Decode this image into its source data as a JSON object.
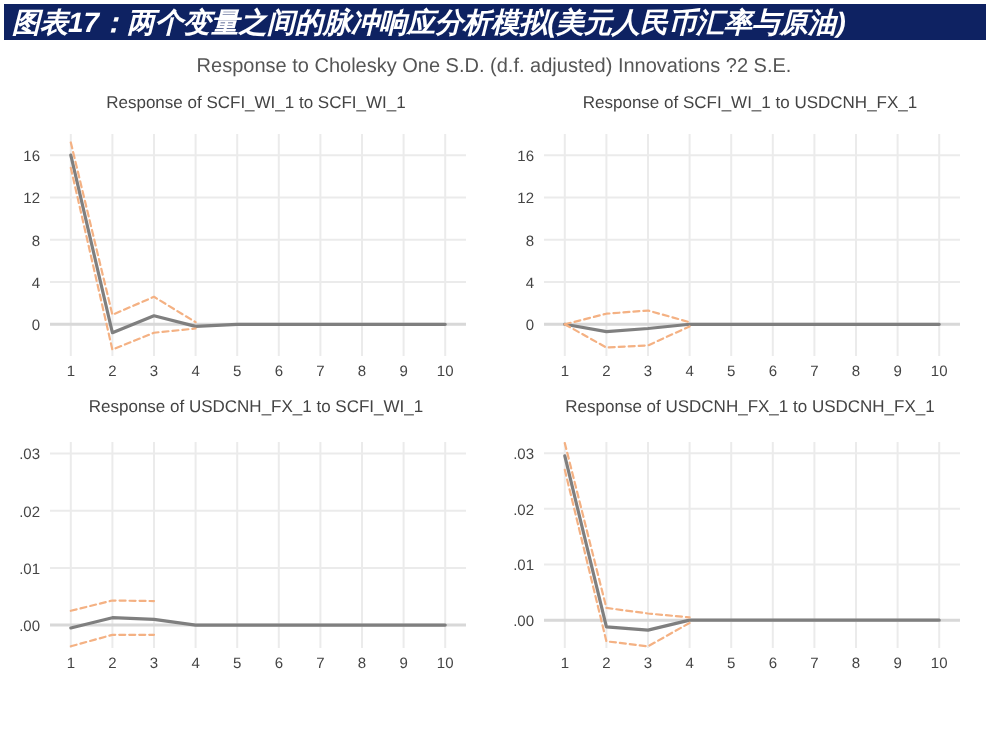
{
  "chart_data": [
    {
      "type": "other",
      "title": "图表17：两个变量之间的脉冲响应分析模拟(美元人民币汇率与原油)",
      "subtitle": "Response to Cholesky One S.D. (d.f. adjusted) Innovations ?2 S.E."
    },
    {
      "type": "line",
      "title": "Response of SCFI_WI_1 to SCFI_WI_1",
      "categories": [
        "1",
        "2",
        "3",
        "4",
        "5",
        "6",
        "7",
        "8",
        "9",
        "10"
      ],
      "ylim": [
        -3,
        18
      ],
      "yticks": [
        0,
        4,
        8,
        12,
        16
      ],
      "grid": true,
      "series": [
        {
          "color": "#7f7f7f",
          "line_style": "solid",
          "values": [
            16,
            -0.8,
            0.8,
            -0.2,
            0,
            0,
            0,
            0,
            0,
            0
          ]
        },
        {
          "color": "#f4b183",
          "line_style": "dashed",
          "values": [
            17.2,
            0.9,
            2.6,
            0.2,
            null,
            null,
            null,
            null,
            null,
            null
          ]
        },
        {
          "color": "#f4b183",
          "line_style": "dashed",
          "values": [
            14.8,
            -2.4,
            -0.8,
            -0.4,
            null,
            null,
            null,
            null,
            null,
            null
          ]
        }
      ]
    },
    {
      "type": "line",
      "title": "Response of SCFI_WI_1 to USDCNH_FX_1",
      "categories": [
        "1",
        "2",
        "3",
        "4",
        "5",
        "6",
        "7",
        "8",
        "9",
        "10"
      ],
      "ylim": [
        -3,
        18
      ],
      "yticks": [
        0,
        4,
        8,
        12,
        16
      ],
      "grid": true,
      "series": [
        {
          "color": "#7f7f7f",
          "line_style": "solid",
          "values": [
            0,
            -0.7,
            -0.4,
            0,
            0,
            0,
            0,
            0,
            0,
            0
          ]
        },
        {
          "color": "#f4b183",
          "line_style": "dashed",
          "values": [
            0,
            1.0,
            1.3,
            0.2,
            null,
            null,
            null,
            null,
            null,
            null
          ]
        },
        {
          "color": "#f4b183",
          "line_style": "dashed",
          "values": [
            0,
            -2.2,
            -2.0,
            -0.2,
            null,
            null,
            null,
            null,
            null,
            null
          ]
        }
      ]
    },
    {
      "type": "line",
      "title": "Response of USDCNH_FX_1 to SCFI_WI_1",
      "categories": [
        "1",
        "2",
        "3",
        "4",
        "5",
        "6",
        "7",
        "8",
        "9",
        "10"
      ],
      "ylim": [
        -0.004,
        0.032
      ],
      "yticks": [
        {
          "value": 0,
          "label": ".00"
        },
        {
          "value": 0.01,
          "label": ".01"
        },
        {
          "value": 0.02,
          "label": ".02"
        },
        {
          "value": 0.03,
          "label": ".03"
        }
      ],
      "grid": true,
      "series": [
        {
          "color": "#7f7f7f",
          "line_style": "solid",
          "values": [
            -0.0005,
            0.0013,
            0.001,
            0,
            0,
            0,
            0,
            0,
            0,
            0
          ]
        },
        {
          "color": "#f4b183",
          "line_style": "dashed",
          "values": [
            0.0025,
            0.0043,
            0.0042,
            null,
            null,
            null,
            null,
            null,
            null,
            null
          ]
        },
        {
          "color": "#f4b183",
          "line_style": "dashed",
          "values": [
            -0.0037,
            -0.0017,
            -0.0017,
            null,
            null,
            null,
            null,
            null,
            null,
            null
          ]
        }
      ]
    },
    {
      "type": "line",
      "title": "Response of USDCNH_FX_1 to USDCNH_FX_1",
      "categories": [
        "1",
        "2",
        "3",
        "4",
        "5",
        "6",
        "7",
        "8",
        "9",
        "10"
      ],
      "ylim": [
        -0.005,
        0.032
      ],
      "yticks": [
        {
          "value": 0,
          "label": ".00"
        },
        {
          "value": 0.01,
          "label": ".01"
        },
        {
          "value": 0.02,
          "label": ".02"
        },
        {
          "value": 0.03,
          "label": ".03"
        }
      ],
      "grid": true,
      "series": [
        {
          "color": "#7f7f7f",
          "line_style": "solid",
          "values": [
            0.0295,
            -0.0012,
            -0.0018,
            0,
            0,
            0,
            0,
            0,
            0,
            0
          ]
        },
        {
          "color": "#f4b183",
          "line_style": "dashed",
          "values": [
            0.0318,
            0.0022,
            0.0012,
            0.0005,
            null,
            null,
            null,
            null,
            null,
            null
          ]
        },
        {
          "color": "#f4b183",
          "line_style": "dashed",
          "values": [
            0.027,
            -0.0038,
            -0.0047,
            -0.0005,
            null,
            null,
            null,
            null,
            null,
            null
          ]
        }
      ]
    }
  ]
}
